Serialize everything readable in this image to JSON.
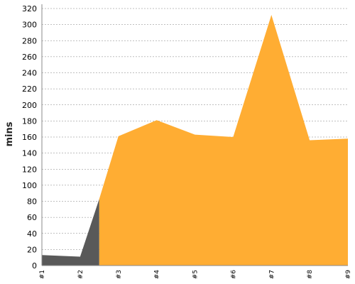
{
  "chart_data": {
    "type": "area",
    "ylabel": "mins",
    "ylim": [
      0,
      320
    ],
    "yticks": [
      "0",
      "20",
      "40",
      "60",
      "80",
      "100",
      "120",
      "140",
      "160",
      "180",
      "200",
      "220",
      "240",
      "260",
      "280",
      "300",
      "320"
    ],
    "categories": [
      "#1",
      "#2",
      "#3",
      "#4",
      "#5",
      "#6",
      "#7",
      "#8",
      "#9"
    ],
    "grid": true,
    "colors": {
      "early": "#595959",
      "main": "#ffad33",
      "grid": "#808080"
    },
    "series": [
      {
        "values": [
          13,
          11,
          null,
          null,
          null,
          null,
          null,
          null,
          null
        ],
        "color": "#595959"
      },
      {
        "values": [
          null,
          null,
          161,
          181,
          163,
          160,
          312,
          156,
          158
        ],
        "color": "#ffad33"
      }
    ],
    "transition": {
      "x": 1.5,
      "y": 83
    }
  }
}
